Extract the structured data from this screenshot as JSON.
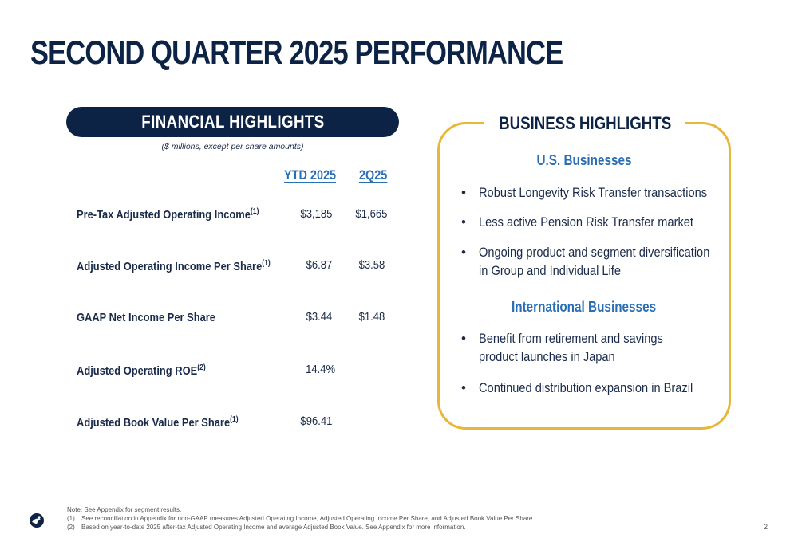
{
  "title": "SECOND QUARTER 2025 PERFORMANCE",
  "financial": {
    "header": "FINANCIAL HIGHLIGHTS",
    "subtitle": "($ millions, except per share amounts)",
    "columns": [
      "YTD 2025",
      "2Q25"
    ],
    "rows": [
      {
        "label": "Pre-Tax Adjusted Operating Income",
        "sup": "(1)",
        "ytd": "$3,185",
        "q": "$1,665"
      },
      {
        "label": "Adjusted Operating Income Per Share",
        "sup": "(1)",
        "ytd": "$6.87",
        "q": "$3.58"
      },
      {
        "label": "GAAP Net Income Per Share",
        "sup": "",
        "ytd": "$3.44",
        "q": "$1.48"
      },
      {
        "label": "Adjusted Operating ROE",
        "sup": "(2)",
        "ytd": "14.4%",
        "q": ""
      },
      {
        "label": "Adjusted Book Value Per Share",
        "sup": "(1)",
        "ytd": "$96.41",
        "q": ""
      }
    ]
  },
  "business": {
    "header": "BUSINESS HIGHLIGHTS",
    "us_head": "U.S. Businesses",
    "us_bullets": [
      "Robust Longevity Risk Transfer transactions",
      "Less active Pension Risk Transfer market",
      "Ongoing product and segment diversification in Group and Individual Life"
    ],
    "intl_head": "International Businesses",
    "intl_bullets": [
      "Benefit from retirement and savings product launches in Japan",
      "Continued distribution expansion in Brazil"
    ]
  },
  "notes": {
    "intro": "Note: See Appendix for segment results.",
    "items": [
      {
        "key": "(1)",
        "text": "See reconciliation in Appendix for non-GAAP measures Adjusted Operating Income, Adjusted Operating Income Per Share, and Adjusted Book Value Per Share."
      },
      {
        "key": "(2)",
        "text": "Based on year-to-date 2025 after-tax Adjusted Operating Income and average Adjusted Book Value. See Appendix for more information."
      }
    ]
  },
  "page_number": "2",
  "colors": {
    "navy": "#0d2346",
    "blue": "#2a6fb5",
    "gold": "#e8b73a"
  },
  "icons": {
    "logo": "company-logo-icon"
  }
}
